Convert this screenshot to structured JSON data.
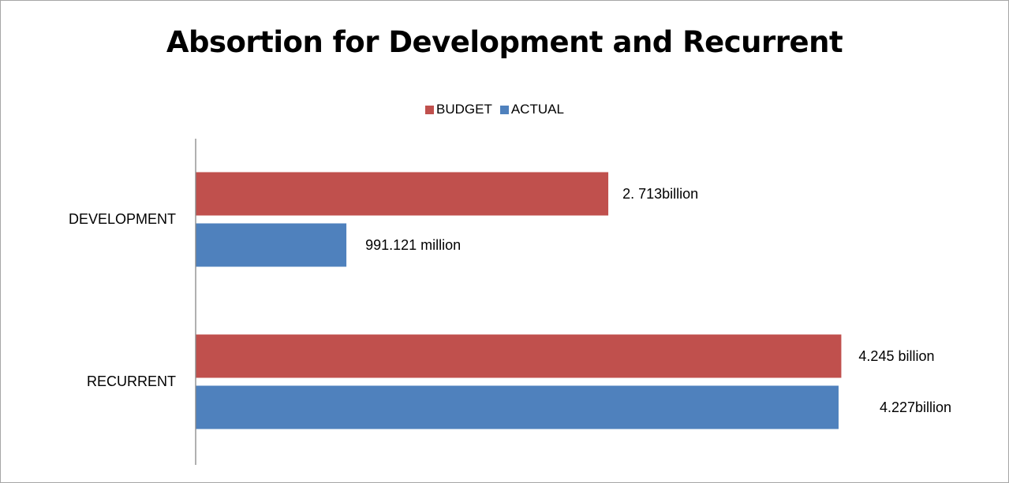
{
  "chart_data": {
    "type": "bar",
    "orientation": "horizontal",
    "title": "Absortion for Development and Recurrent",
    "categories": [
      "DEVELOPMENT",
      "RECURRENT"
    ],
    "series": [
      {
        "name": "BUDGET",
        "color": "#c0504d",
        "values": [
          2.713,
          4.245
        ],
        "labels": [
          "2. 713billion",
          "4.245 billion"
        ]
      },
      {
        "name": "ACTUAL",
        "color": "#4f81bd",
        "values": [
          0.991121,
          4.227
        ],
        "labels": [
          "991.121 million",
          "4.227billion"
        ]
      }
    ],
    "unit": "billion",
    "xlim": [
      0,
      5.1
    ],
    "legend_position": "top",
    "grid": false,
    "value_axis_visible": false
  }
}
